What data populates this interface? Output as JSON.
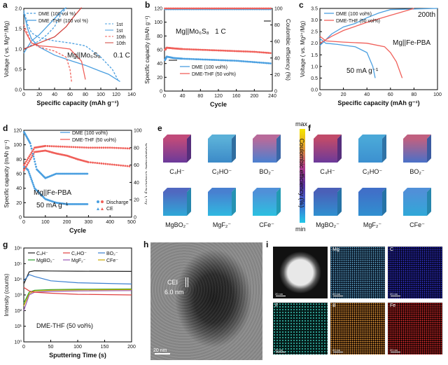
{
  "panels": {
    "a": {
      "label": "a",
      "ylabel": "Voltage ( vs. Mg²⁺/Mg)",
      "xlabel": "Specific capacity (mAh g⁻¹)",
      "annotation": "Mg||Mo₆S₈",
      "rate": "0.1 C",
      "legend": [
        "DME (100 vol %)",
        "DME -THF (100 vol %)"
      ],
      "cycle_labels": [
        "1st",
        "1st",
        "10th",
        "10th"
      ]
    },
    "b": {
      "label": "b",
      "ylabel": "Specific capacity (mAh g⁻¹)",
      "ylabel2": "Coulombic efficiency (%)",
      "xlabel": "Cycle",
      "annotation": "Mg||Mo₆S₈   1 C",
      "legend": [
        "DME (100 vol%)",
        "DME-THF (50 vol%)"
      ]
    },
    "c": {
      "label": "c",
      "ylabel": "Voltage ( vs. Mg²⁺/Mg)",
      "xlabel": "Specific capacity (mAh g⁻¹)",
      "annotation": "Mg||Fe-PBA",
      "rate": "50 mA g⁻¹",
      "cycle": "200th",
      "legend": [
        "DME (100 vol%)",
        "DME-THF (50 vol%)"
      ]
    },
    "d": {
      "label": "d",
      "ylabel": "Specific capacity (mAh g⁻¹)",
      "ylabel2": "Coulombic efficiency (%)",
      "xlabel": "Cycle",
      "annotation": "Mg||Fe-PBA",
      "rate": "50 mA g⁻¹",
      "legend": [
        "DME (100 vol%)",
        "DME-THF (50 vol%)"
      ],
      "marker_legend": [
        "Discharge",
        "CE"
      ]
    },
    "e": {
      "label": "e",
      "species": [
        "C₄H⁻",
        "C₂HO⁻",
        "BO₂⁻",
        "MgBO₂⁻",
        "MgF₂⁻",
        "CFe⁻"
      ]
    },
    "colorbar": {
      "max": "max",
      "min": "min"
    },
    "f": {
      "label": "f",
      "species": [
        "C₄H⁻",
        "C₂HO⁻",
        "BO₂⁻",
        "MgBO₂⁻",
        "MgF₂⁻",
        "CFe⁻"
      ]
    },
    "g": {
      "label": "g",
      "ylabel": "Intensity (counts)",
      "xlabel": "Sputtering Time (s)",
      "annotation": "DME-THF (50 vol%)",
      "legend": [
        "C₄H⁻",
        "C₂HO⁻",
        "BO₂⁻",
        "MgBO₂⁻",
        "MgF₂⁻",
        "CFe⁻"
      ]
    },
    "h": {
      "label": "h",
      "cei_label": "CEI",
      "thickness": "6.0 nm",
      "scalebar": "20 nm"
    },
    "i": {
      "label": "i",
      "maps": [
        "",
        "Mg",
        "C",
        "F",
        "B",
        "Fe"
      ],
      "scalebar": "20 nm"
    }
  },
  "colors": {
    "blue": "#4a9fe0",
    "red": "#f0605a",
    "dark_red": "#d2403a"
  },
  "chart_data": [
    {
      "type": "line",
      "panel": "a",
      "xlabel": "Specific capacity (mAh g⁻¹)",
      "ylabel": "Voltage ( vs. Mg²⁺/Mg)",
      "xlim": [
        0,
        140
      ],
      "ylim": [
        0.0,
        2.0
      ],
      "xticks": [
        0,
        20,
        40,
        60,
        80,
        100,
        120,
        140
      ],
      "yticks": [
        0.0,
        0.5,
        1.0,
        1.5,
        2.0
      ],
      "series": [
        {
          "name": "DME (100 vol %) 1st",
          "style": "dash",
          "color": "#4a9fe0",
          "x": [
            0,
            5,
            10,
            20,
            40,
            60,
            80,
            100,
            115,
            122
          ],
          "y": [
            1.95,
            1.6,
            1.4,
            1.28,
            1.2,
            1.15,
            1.08,
            0.8,
            0.5,
            0.25
          ]
        },
        {
          "name": "DME (100 vol %) charge",
          "style": "dash",
          "color": "#4a9fe0",
          "x": [
            0,
            10,
            20,
            30,
            40,
            45,
            50,
            55
          ],
          "y": [
            1.0,
            1.1,
            1.2,
            1.35,
            1.55,
            1.75,
            1.9,
            2.0
          ]
        },
        {
          "name": "DME -THF (100 vol %) 1st",
          "style": "solid",
          "color": "#4a9fe0",
          "x": [
            0,
            5,
            10,
            20,
            40,
            60,
            80,
            100,
            110,
            125
          ],
          "y": [
            1.9,
            1.5,
            1.25,
            1.05,
            0.85,
            0.72,
            0.6,
            0.45,
            0.38,
            0.2
          ]
        },
        {
          "name": "DME -THF (100 vol %) charge",
          "style": "solid",
          "color": "#4a9fe0",
          "x": [
            0,
            10,
            20,
            30,
            40,
            50,
            55
          ],
          "y": [
            0.9,
            1.2,
            1.35,
            1.55,
            1.75,
            1.95,
            2.02
          ]
        },
        {
          "name": "DME (100 vol %) 10th",
          "style": "dash",
          "color": "#f0605a",
          "x": [
            0,
            10,
            20,
            40,
            55,
            60,
            62
          ],
          "y": [
            1.6,
            1.15,
            1.05,
            0.95,
            0.8,
            0.5,
            0.2
          ]
        },
        {
          "name": "DME -THF (100 vol %) 10th",
          "style": "solid",
          "color": "#f0605a",
          "x": [
            0,
            10,
            20,
            40,
            60,
            75,
            80
          ],
          "y": [
            1.5,
            1.15,
            1.08,
            1.05,
            1.0,
            0.7,
            0.25
          ]
        },
        {
          "name": "DME -THF (100 vol %) 10th charge",
          "style": "solid",
          "color": "#d2403a",
          "x": [
            0,
            20,
            40,
            55,
            65,
            75
          ],
          "y": [
            1.0,
            1.15,
            1.3,
            1.55,
            1.8,
            2.02
          ]
        }
      ]
    },
    {
      "type": "scatter",
      "panel": "b",
      "xlabel": "Cycle",
      "ylabel": "Specific capacity (mAh g⁻¹)",
      "ylabel2": "Coulombic efficiency (%)",
      "xlim": [
        0,
        240
      ],
      "ylim": [
        0,
        120
      ],
      "y2lim": [
        0,
        100
      ],
      "xticks": [
        0,
        40,
        80,
        120,
        160,
        200,
        240
      ],
      "yticks": [
        0,
        20,
        40,
        60,
        80,
        100,
        120
      ],
      "y2ticks": [
        0,
        20,
        40,
        60,
        80,
        100
      ],
      "series": [
        {
          "name": "DME (100 vol%)",
          "color": "#4a9fe0",
          "x": [
            1,
            5,
            20,
            40,
            80,
            120,
            160,
            200,
            240
          ],
          "y": [
            45,
            50,
            48,
            47,
            46,
            45,
            44,
            42,
            40
          ]
        },
        {
          "name": "DME-THF (50 vol%)",
          "color": "#f0605a",
          "x": [
            1,
            5,
            20,
            40,
            80,
            120,
            160,
            200,
            240
          ],
          "y": [
            60,
            63,
            62,
            61,
            60,
            59,
            58,
            57,
            55
          ]
        },
        {
          "name": "DME CE",
          "color": "#4a9fe0",
          "axis": "right",
          "x": [
            1,
            40,
            80,
            120,
            160,
            200,
            240
          ],
          "y": [
            99,
            99,
            99,
            99,
            99,
            99,
            99
          ]
        },
        {
          "name": "DME-THF CE",
          "color": "#f0605a",
          "axis": "right",
          "x": [
            1,
            40,
            80,
            120,
            160,
            200,
            240
          ],
          "y": [
            100,
            100,
            100,
            100,
            100,
            100,
            100
          ]
        }
      ]
    },
    {
      "type": "line",
      "panel": "c",
      "xlabel": "Specific capacity (mAh g⁻¹)",
      "ylabel": "Voltage ( vs. Mg²⁺/Mg)",
      "xlim": [
        0,
        100
      ],
      "ylim": [
        0.0,
        3.5
      ],
      "xticks": [
        0,
        20,
        40,
        60,
        80,
        100
      ],
      "yticks": [
        0.0,
        0.5,
        1.0,
        1.5,
        2.0,
        2.5,
        3.0,
        3.5
      ],
      "series": [
        {
          "name": "DME (100 vol%) discharge",
          "color": "#4a9fe0",
          "x": [
            0,
            5,
            15,
            30,
            40,
            45,
            47
          ],
          "y": [
            2.2,
            2.0,
            1.95,
            1.85,
            1.6,
            1.0,
            0.5
          ]
        },
        {
          "name": "DME (100 vol%) charge",
          "color": "#4a9fe0",
          "x": [
            0,
            10,
            20,
            30,
            40,
            50,
            60,
            100
          ],
          "y": [
            1.9,
            2.4,
            2.7,
            2.85,
            3.1,
            3.3,
            3.45,
            3.5
          ]
        },
        {
          "name": "DME-THF (50 vol%) discharge",
          "color": "#f0605a",
          "x": [
            0,
            5,
            20,
            40,
            55,
            60,
            65,
            70
          ],
          "y": [
            2.3,
            2.1,
            2.05,
            2.0,
            1.85,
            1.6,
            1.2,
            0.5
          ]
        },
        {
          "name": "DME-THF (50 vol%) charge",
          "color": "#f0605a",
          "x": [
            0,
            10,
            20,
            40,
            60,
            70,
            80
          ],
          "y": [
            2.0,
            2.3,
            2.55,
            2.9,
            3.2,
            3.35,
            3.5
          ]
        }
      ]
    },
    {
      "type": "scatter",
      "panel": "d",
      "xlabel": "Cycle",
      "ylabel": "Specific capacity (mAh g⁻¹)",
      "ylabel2": "Coulombic efficiency (%)",
      "xlim": [
        0,
        500
      ],
      "ylim": [
        0,
        120
      ],
      "y2lim": [
        0,
        100
      ],
      "xticks": [
        0,
        100,
        200,
        300,
        400,
        500
      ],
      "yticks": [
        0,
        20,
        40,
        60,
        80,
        100,
        120
      ],
      "y2ticks": [
        0,
        20,
        40,
        60,
        80,
        100
      ],
      "series": [
        {
          "name": "DME (100 vol%)",
          "color": "#4a9fe0",
          "x": [
            1,
            20,
            50,
            100,
            150,
            200,
            250,
            300
          ],
          "y": [
            70,
            65,
            40,
            25,
            20,
            18,
            18,
            18
          ]
        },
        {
          "name": "DME-THF (50 vol%)",
          "color": "#f0605a",
          "x": [
            1,
            50,
            100,
            150,
            200,
            250,
            300,
            400,
            500
          ],
          "y": [
            65,
            90,
            92,
            88,
            85,
            80,
            76,
            73,
            70
          ]
        },
        {
          "name": "DME CE",
          "color": "#4a9fe0",
          "axis": "right",
          "x": [
            1,
            30,
            60,
            100,
            150,
            200,
            250,
            300
          ],
          "y": [
            98,
            85,
            55,
            45,
            50,
            50,
            50,
            50
          ]
        },
        {
          "name": "DME-THF CE",
          "color": "#f0605a",
          "axis": "right",
          "x": [
            1,
            50,
            100,
            200,
            300,
            400,
            500
          ],
          "y": [
            60,
            80,
            82,
            81,
            80,
            80,
            79
          ]
        }
      ]
    },
    {
      "type": "line",
      "panel": "g",
      "xlabel": "Sputtering Time (s)",
      "ylabel": "Intensity (counts)",
      "xlim": [
        0,
        200
      ],
      "ylog": true,
      "yticks": [
        "10⁰",
        "10¹",
        "10²",
        "10³",
        "10⁴",
        "10⁵",
        "10⁶"
      ],
      "xticks": [
        0,
        50,
        100,
        150,
        200
      ],
      "series": [
        {
          "name": "C₄H⁻",
          "color": "#222222",
          "x": [
            0,
            10,
            20,
            50,
            100,
            200
          ],
          "y": [
            5000,
            30000,
            35000,
            34000,
            33000,
            32000
          ]
        },
        {
          "name": "BO₂⁻",
          "color": "#3a7fd0",
          "x": [
            0,
            10,
            20,
            50,
            100,
            200
          ],
          "y": [
            8000,
            20000,
            15000,
            8000,
            6000,
            5000
          ]
        },
        {
          "name": "MgBO₂⁻",
          "color": "#2ca02c",
          "x": [
            0,
            10,
            20,
            50,
            100,
            200
          ],
          "y": [
            300,
            1500,
            2000,
            2200,
            2300,
            2400
          ]
        },
        {
          "name": "CFe⁻",
          "color": "#c9a800",
          "x": [
            0,
            10,
            20,
            50,
            100,
            200
          ],
          "y": [
            200,
            1200,
            1800,
            2000,
            2100,
            2200
          ]
        },
        {
          "name": "MgF₂⁻",
          "color": "#9b59b6",
          "x": [
            0,
            10,
            20,
            50,
            100,
            200
          ],
          "y": [
            100,
            1000,
            1500,
            1700,
            1800,
            1900
          ]
        },
        {
          "name": "C₂HO⁻",
          "color": "#e04040",
          "x": [
            0,
            10,
            20,
            50,
            100,
            200
          ],
          "y": [
            3000,
            1800,
            1500,
            1300,
            1100,
            1000
          ]
        }
      ]
    }
  ]
}
